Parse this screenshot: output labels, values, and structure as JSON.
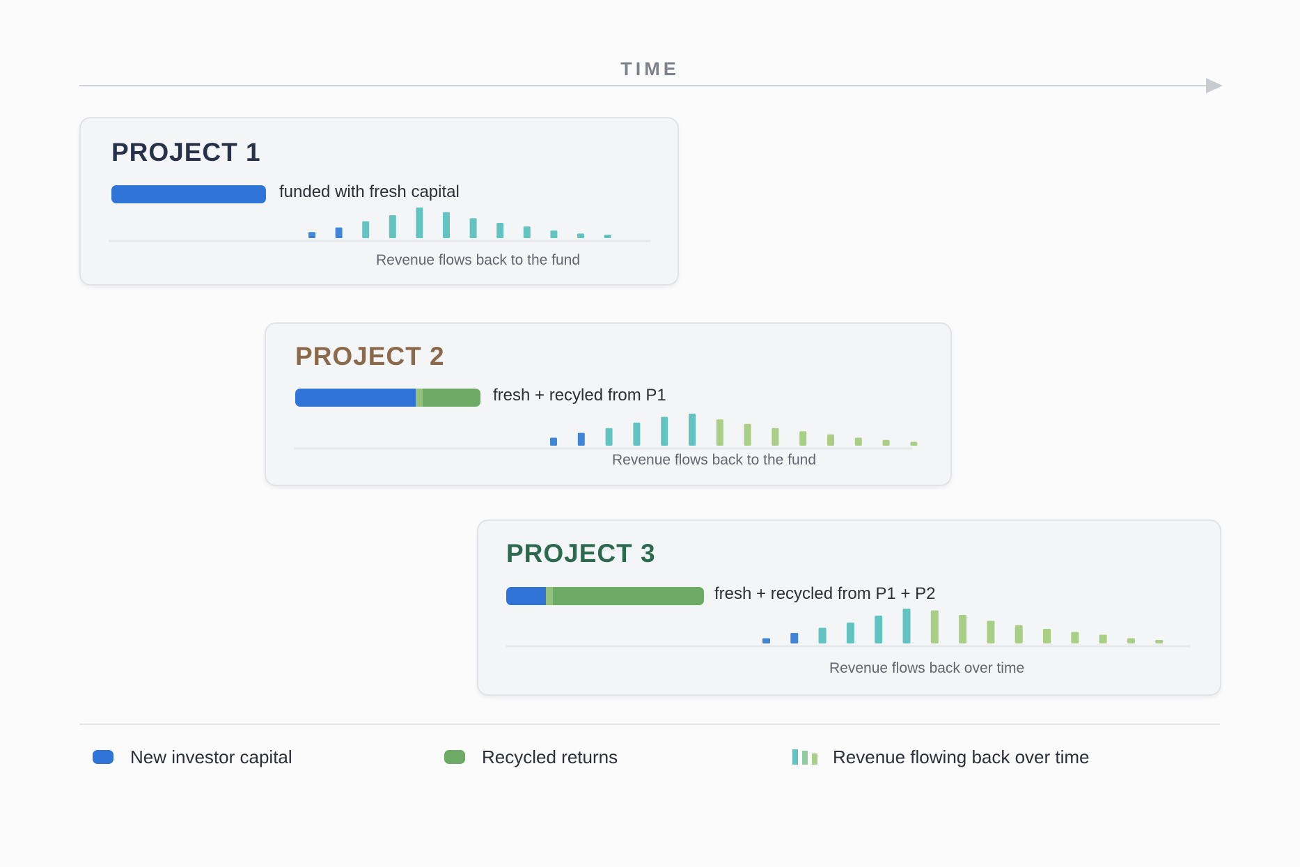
{
  "time_label": "TIME",
  "colors": {
    "fresh": "#2f74d6",
    "recycled": "#6daa66",
    "revenue_blue": "#3f86d8",
    "revenue_teal": "#63c3c0",
    "revenue_green": "#a9cf86"
  },
  "projects": [
    {
      "title": "PROJECT 1",
      "title_color": "#27324a",
      "capital_label": "funded with fresh capital",
      "capital_mix": {
        "fresh": 1.0,
        "recycled": 0.0
      },
      "revenue_label": "Revenue flows back to the fund",
      "revenue_bars": [
        0.2,
        0.35,
        0.55,
        0.75,
        1.0,
        0.85,
        0.65,
        0.5,
        0.38,
        0.25,
        0.15,
        0.1
      ],
      "revenue_colors": [
        "revenue_blue",
        "revenue_blue",
        "revenue_teal",
        "revenue_teal",
        "revenue_teal",
        "revenue_teal",
        "revenue_teal",
        "revenue_teal",
        "revenue_teal",
        "revenue_teal",
        "revenue_teal",
        "revenue_teal"
      ]
    },
    {
      "title": "PROJECT 2",
      "title_color": "#8a6a4b",
      "capital_label": "fresh + recyled from P1",
      "capital_mix": {
        "fresh": 0.65,
        "recycled": 0.35
      },
      "revenue_label": "Revenue flows back to the fund",
      "revenue_bars": [
        0.25,
        0.4,
        0.55,
        0.72,
        0.9,
        1.0,
        0.82,
        0.68,
        0.55,
        0.45,
        0.35,
        0.25,
        0.18,
        0.12
      ],
      "revenue_colors": [
        "revenue_blue",
        "revenue_blue",
        "revenue_teal",
        "revenue_teal",
        "revenue_teal",
        "revenue_teal",
        "revenue_green",
        "revenue_green",
        "revenue_green",
        "revenue_green",
        "revenue_green",
        "revenue_green",
        "revenue_green",
        "revenue_green"
      ]
    },
    {
      "title": "PROJECT 3",
      "title_color": "#2c6a4f",
      "capital_label": "fresh + recycled from P1 + P2",
      "capital_mix": {
        "fresh": 0.2,
        "recycled": 0.8
      },
      "revenue_label": "Revenue flows back over time",
      "revenue_bars": [
        0.15,
        0.3,
        0.45,
        0.6,
        0.8,
        1.0,
        0.95,
        0.82,
        0.65,
        0.52,
        0.42,
        0.33,
        0.25,
        0.15,
        0.08
      ],
      "revenue_colors": [
        "revenue_blue",
        "revenue_blue",
        "revenue_teal",
        "revenue_teal",
        "revenue_teal",
        "revenue_teal",
        "revenue_green",
        "revenue_green",
        "revenue_green",
        "revenue_green",
        "revenue_green",
        "revenue_green",
        "revenue_green",
        "revenue_green",
        "revenue_green"
      ]
    }
  ],
  "legend": {
    "fresh_label": "New investor capital",
    "recycled_label": "Recycled returns",
    "revenue_label": "Revenue flowing back over time"
  }
}
